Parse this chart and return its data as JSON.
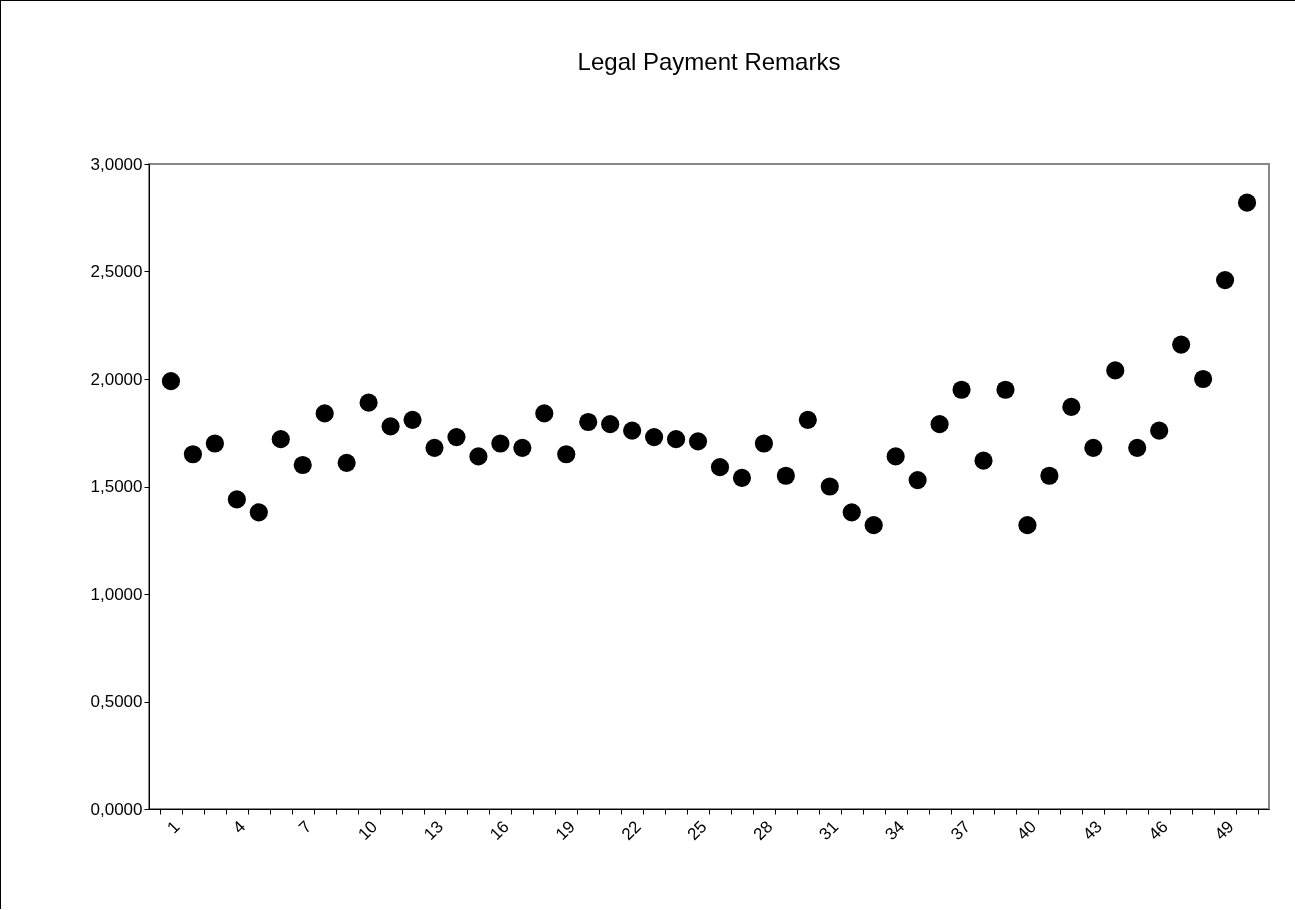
{
  "chart_data": {
    "type": "scatter",
    "title": "Legal Payment Remarks",
    "categories": [
      "1",
      null,
      null,
      "4",
      null,
      null,
      "7",
      null,
      null,
      "10",
      null,
      null,
      "13",
      null,
      null,
      "16",
      null,
      null,
      "19",
      null,
      null,
      "22",
      null,
      null,
      "25",
      null,
      null,
      "28",
      null,
      null,
      "31",
      null,
      null,
      "34",
      null,
      null,
      "37",
      null,
      null,
      "40",
      null,
      null,
      "43",
      null,
      null,
      "46",
      null,
      null,
      "49",
      null
    ],
    "series": [
      {
        "color": "#000000",
        "values": [
          1.99,
          1.65,
          1.7,
          1.44,
          1.38,
          1.72,
          1.6,
          1.84,
          1.61,
          1.89,
          1.78,
          1.81,
          1.68,
          1.73,
          1.64,
          1.7,
          1.68,
          1.84,
          1.65,
          1.8,
          1.79,
          1.76,
          1.73,
          1.72,
          1.71,
          1.59,
          1.54,
          1.7,
          1.55,
          1.81,
          1.5,
          1.38,
          1.32,
          1.64,
          1.53,
          1.79,
          1.95,
          1.62,
          1.95,
          1.32,
          1.55,
          1.87,
          1.68,
          2.04,
          1.68,
          1.76,
          2.16,
          2.0,
          2.46,
          2.82
        ]
      }
    ],
    "ylim": [
      0,
      3
    ],
    "yticks": [
      {
        "value": 0,
        "label": "0,0000"
      },
      {
        "value": 0.5,
        "label": "0,5000"
      },
      {
        "value": 1,
        "label": "1,0000"
      },
      {
        "value": 1.5,
        "label": "1,5000"
      },
      {
        "value": 2,
        "label": "2,0000"
      },
      {
        "value": 2.5,
        "label": "2,5000"
      },
      {
        "value": 3,
        "label": "3,0000"
      }
    ],
    "grid": false,
    "marker": "circle"
  }
}
